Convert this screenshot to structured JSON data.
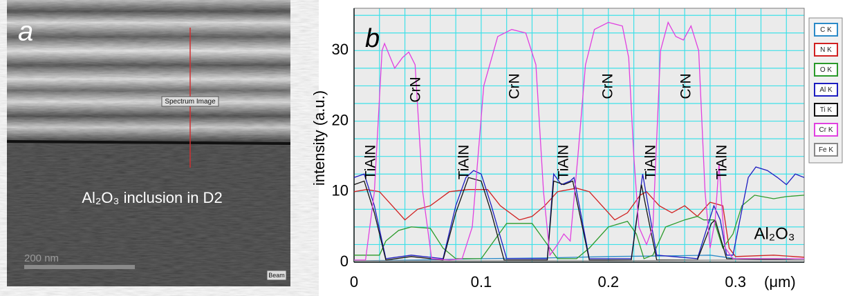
{
  "image_panel": {
    "label": "a",
    "marker": "Spectrum Image",
    "caption": "Al₂O₃ inclusion in D2",
    "scale_bar": "200 nm",
    "button": "Beam"
  },
  "chart_data": {
    "type": "line",
    "panel_label": "b",
    "ylabel": "intensity (a.u.)",
    "xlabel": "(μm)",
    "annotations": [
      "TiAlN",
      "CrN",
      "TiAlN",
      "CrN",
      "TiAlN",
      "CrN",
      "TiAlN",
      "CrN",
      "TiAlN",
      "Al₂O₃"
    ],
    "xlim": [
      0,
      0.354
    ],
    "xticks": [
      0,
      0.1,
      0.2,
      0.3
    ],
    "xminorticks": [
      0.02,
      0.04,
      0.06,
      0.08,
      0.12,
      0.14,
      0.16,
      0.18,
      0.22,
      0.24,
      0.26,
      0.28,
      0.32,
      0.34
    ],
    "ylim": [
      0,
      36
    ],
    "yticks": [
      0,
      10,
      20,
      30
    ],
    "yminorticks": [
      2.5,
      5,
      7.5,
      12.5,
      15,
      17.5,
      22.5,
      25,
      27.5,
      32.5,
      35
    ],
    "grid": true,
    "legend": "right",
    "series": [
      {
        "name": "C K",
        "color": "#2a8ac8",
        "x": [
          0,
          0.05,
          0.1,
          0.15,
          0.2,
          0.25,
          0.28,
          0.3,
          0.354
        ],
        "values": [
          0.2,
          0.3,
          0.5,
          0.6,
          0.8,
          0.9,
          1,
          0.5,
          0.3
        ]
      },
      {
        "name": "N K",
        "color": "#d02020",
        "x": [
          0,
          0.01,
          0.02,
          0.03,
          0.04,
          0.05,
          0.06,
          0.075,
          0.09,
          0.105,
          0.115,
          0.13,
          0.14,
          0.15,
          0.16,
          0.175,
          0.185,
          0.195,
          0.205,
          0.215,
          0.225,
          0.23,
          0.24,
          0.25,
          0.26,
          0.27,
          0.28,
          0.29,
          0.295,
          0.3,
          0.33,
          0.354
        ],
        "values": [
          10,
          10.3,
          10,
          8,
          6,
          7.5,
          8,
          10,
          10.3,
          10.3,
          8,
          6,
          6.5,
          8,
          10,
          10.5,
          10,
          8,
          6,
          7,
          9.5,
          10,
          8,
          7,
          8,
          6.5,
          8.5,
          8,
          2,
          0.8,
          1,
          0.7
        ]
      },
      {
        "name": "O K",
        "color": "#2a9a2a",
        "x": [
          0,
          0.02,
          0.025,
          0.035,
          0.045,
          0.06,
          0.07,
          0.08,
          0.1,
          0.11,
          0.12,
          0.14,
          0.15,
          0.16,
          0.175,
          0.185,
          0.2,
          0.215,
          0.222,
          0.228,
          0.235,
          0.245,
          0.26,
          0.27,
          0.275,
          0.283,
          0.29,
          0.298,
          0.305,
          0.315,
          0.33,
          0.34,
          0.354
        ],
        "values": [
          1,
          1,
          3,
          4.5,
          5,
          4.8,
          2,
          0.5,
          0.5,
          3,
          5.5,
          5.5,
          3,
          0.5,
          0.5,
          2,
          5,
          5.8,
          4,
          0.5,
          1,
          5,
          6,
          6.5,
          6,
          6,
          2,
          4,
          8,
          9.5,
          9,
          9.3,
          9.5
        ]
      },
      {
        "name": "Al K",
        "color": "#1c1cc0",
        "x": [
          0,
          0.008,
          0.016,
          0.025,
          0.045,
          0.07,
          0.08,
          0.088,
          0.094,
          0.1,
          0.108,
          0.12,
          0.152,
          0.157,
          0.163,
          0.17,
          0.173,
          0.185,
          0.218,
          0.227,
          0.238,
          0.27,
          0.283,
          0.288,
          0.293,
          0.298,
          0.31,
          0.316,
          0.325,
          0.333,
          0.34,
          0.347,
          0.354
        ],
        "values": [
          12,
          12.5,
          8,
          0.5,
          1,
          0.5,
          8,
          12,
          13,
          12.5,
          8,
          0.5,
          0.5,
          12.5,
          11,
          11.5,
          12,
          0.5,
          0.5,
          12.5,
          1,
          0.5,
          8,
          6,
          1,
          1,
          12,
          13.5,
          13,
          12,
          11,
          12.5,
          12
        ]
      },
      {
        "name": "Ti K",
        "color": "#111111",
        "x": [
          0,
          0.008,
          0.016,
          0.025,
          0.045,
          0.07,
          0.08,
          0.09,
          0.1,
          0.108,
          0.118,
          0.152,
          0.157,
          0.165,
          0.172,
          0.185,
          0.218,
          0.226,
          0.238,
          0.27,
          0.281,
          0.284,
          0.293,
          0.354
        ],
        "values": [
          11,
          11.5,
          7,
          0.3,
          0.8,
          0.3,
          7,
          12,
          11.5,
          7,
          0.3,
          0.3,
          11.5,
          11,
          11.5,
          0.3,
          0.3,
          11,
          0.3,
          0.3,
          5.5,
          6,
          0.5,
          0.3
        ]
      },
      {
        "name": "Cr K",
        "color": "#e040e0",
        "x": [
          0,
          0.009,
          0.016,
          0.022,
          0.024,
          0.032,
          0.038,
          0.043,
          0.048,
          0.054,
          0.061,
          0.075,
          0.085,
          0.093,
          0.102,
          0.113,
          0.124,
          0.135,
          0.143,
          0.149,
          0.154,
          0.16,
          0.165,
          0.17,
          0.176,
          0.182,
          0.189,
          0.2,
          0.211,
          0.216,
          0.22,
          0.224,
          0.23,
          0.235,
          0.241,
          0.247,
          0.253,
          0.259,
          0.265,
          0.271,
          0.276,
          0.28,
          0.284,
          0.287,
          0.29,
          0.292,
          0.298,
          0.31,
          0.33,
          0.354
        ],
        "values": [
          0.3,
          0.3,
          10,
          30,
          31,
          27.5,
          29,
          29.8,
          28,
          10,
          0.5,
          0.3,
          0.5,
          5,
          25,
          32,
          33,
          32.5,
          28,
          10,
          1,
          2.5,
          4,
          3,
          15,
          28,
          33,
          34,
          33.5,
          29,
          15,
          5,
          2.5,
          5,
          30,
          34,
          32,
          31.5,
          33.5,
          30,
          10,
          2,
          6,
          14,
          6,
          2,
          0.5,
          0.5,
          0.5,
          0.5
        ]
      },
      {
        "name": "Fe K",
        "color": "#888888",
        "x": [
          0,
          0.1,
          0.2,
          0.3,
          0.354
        ],
        "values": [
          0.2,
          0.2,
          0.2,
          0.3,
          0.3
        ]
      }
    ]
  }
}
